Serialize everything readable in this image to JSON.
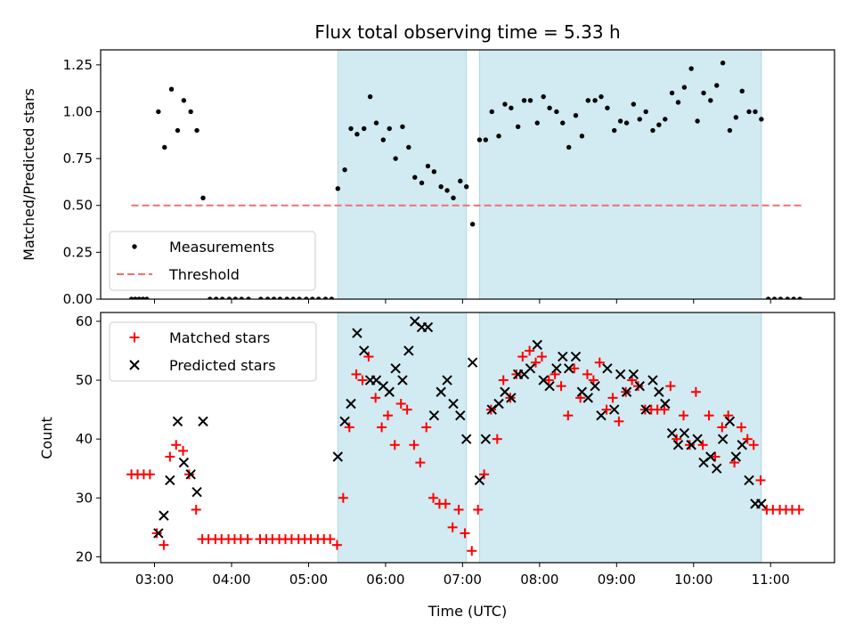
{
  "chart_data": {
    "type": "scatter",
    "title": "Flux total observing time = 5.33 h",
    "xlabel": "Time (UTC)",
    "x_ticks": [
      "03:00",
      "04:00",
      "05:00",
      "06:00",
      "07:00",
      "08:00",
      "09:00",
      "10:00",
      "11:00"
    ],
    "xlim": [
      2.3,
      11.83
    ],
    "colors": {
      "measurements": "#000000",
      "threshold": "#f07070",
      "matched": "#ff0000",
      "predicted": "#000000",
      "shade": "#add8e6"
    },
    "shaded_intervals": [
      [
        5.38,
        7.05
      ],
      [
        7.22,
        10.88
      ]
    ],
    "top": {
      "ylabel": "Matched/Predicted stars",
      "ylim": [
        0,
        1.33
      ],
      "y_ticks": [
        "0.00",
        "0.25",
        "0.50",
        "0.75",
        "1.00",
        "1.25"
      ],
      "legend": {
        "position": "lower-left",
        "entries": [
          "Measurements",
          "Threshold"
        ]
      },
      "threshold": {
        "value": 0.5,
        "x_range": [
          2.7,
          11.4
        ]
      },
      "series": [
        {
          "name": "Measurements",
          "x": [
            2.7,
            2.75,
            2.8,
            2.85,
            2.9,
            3.05,
            3.13,
            3.22,
            3.3,
            3.38,
            3.47,
            3.55,
            3.63,
            3.72,
            3.8,
            3.88,
            3.97,
            4.05,
            4.13,
            4.22,
            4.38,
            4.47,
            4.55,
            4.63,
            4.72,
            4.8,
            4.88,
            4.97,
            5.05,
            5.13,
            5.22,
            5.3,
            5.38,
            5.47,
            5.55,
            5.63,
            5.72,
            5.8,
            5.88,
            5.97,
            6.05,
            6.13,
            6.22,
            6.3,
            6.38,
            6.47,
            6.55,
            6.63,
            6.72,
            6.8,
            6.88,
            6.97,
            7.05,
            7.13,
            7.22,
            7.3,
            7.38,
            7.47,
            7.55,
            7.63,
            7.72,
            7.8,
            7.88,
            7.97,
            8.05,
            8.13,
            8.22,
            8.3,
            8.38,
            8.47,
            8.55,
            8.63,
            8.72,
            8.8,
            8.88,
            8.97,
            9.05,
            9.13,
            9.22,
            9.3,
            9.38,
            9.47,
            9.55,
            9.63,
            9.72,
            9.8,
            9.88,
            9.97,
            10.05,
            10.13,
            10.22,
            10.3,
            10.38,
            10.47,
            10.55,
            10.63,
            10.72,
            10.8,
            10.88,
            10.97,
            11.05,
            11.13,
            11.22,
            11.3,
            11.38
          ],
          "y": [
            0,
            0,
            0,
            0,
            0,
            1.0,
            0.81,
            1.12,
            0.9,
            1.06,
            1.0,
            0.9,
            0.54,
            0,
            0,
            0,
            0,
            0,
            0,
            0,
            0,
            0,
            0,
            0,
            0,
            0,
            0,
            0,
            0,
            0,
            0,
            0,
            0.59,
            0.69,
            0.91,
            0.88,
            0.91,
            1.08,
            0.94,
            0.85,
            0.91,
            0.75,
            0.92,
            0.81,
            0.65,
            0.62,
            0.71,
            0.68,
            0.6,
            0.58,
            0.54,
            0.63,
            0.6,
            0.4,
            0.85,
            0.85,
            1.0,
            0.87,
            1.04,
            1.02,
            0.92,
            1.06,
            1.06,
            0.94,
            1.08,
            1.02,
            1.0,
            0.94,
            0.81,
            0.98,
            0.87,
            1.06,
            1.06,
            1.08,
            1.02,
            0.9,
            0.95,
            0.94,
            1.04,
            0.96,
            1.0,
            0.9,
            0.93,
            0.96,
            1.1,
            1.05,
            1.13,
            1.23,
            0.95,
            1.1,
            1.06,
            1.14,
            1.26,
            0.9,
            0.97,
            1.11,
            1.0,
            1.0,
            0.96,
            0,
            0,
            0,
            0,
            0,
            0
          ]
        }
      ]
    },
    "bottom": {
      "ylabel": "Count",
      "ylim": [
        19,
        61.5
      ],
      "y_ticks": [
        "20",
        "30",
        "40",
        "50",
        "60"
      ],
      "legend": {
        "position": "upper-left",
        "entries": [
          "Matched stars",
          "Predicted stars"
        ]
      },
      "series": [
        {
          "name": "Matched stars",
          "marker": "plus",
          "x": [
            2.7,
            2.78,
            2.86,
            2.94,
            3.03,
            3.12,
            3.2,
            3.28,
            3.37,
            3.45,
            3.54,
            3.62,
            3.7,
            3.79,
            3.87,
            3.96,
            4.04,
            4.12,
            4.21,
            4.37,
            4.45,
            4.53,
            4.62,
            4.7,
            4.78,
            4.87,
            4.95,
            5.03,
            5.12,
            5.2,
            5.28,
            5.37,
            5.45,
            5.53,
            5.62,
            5.7,
            5.78,
            5.87,
            5.95,
            6.03,
            6.12,
            6.2,
            6.28,
            6.37,
            6.45,
            6.53,
            6.62,
            6.7,
            6.78,
            6.87,
            6.95,
            7.03,
            7.12,
            7.2,
            7.28,
            7.37,
            7.45,
            7.53,
            7.62,
            7.7,
            7.78,
            7.87,
            7.95,
            8.03,
            8.12,
            8.2,
            8.28,
            8.37,
            8.45,
            8.53,
            8.62,
            8.7,
            8.78,
            8.87,
            8.95,
            9.03,
            9.12,
            9.2,
            9.28,
            9.37,
            9.45,
            9.53,
            9.62,
            9.7,
            9.78,
            9.87,
            9.95,
            10.03,
            10.12,
            10.2,
            10.28,
            10.37,
            10.45,
            10.53,
            10.62,
            10.7,
            10.78,
            10.87,
            10.95,
            11.03,
            11.12,
            11.2,
            11.28,
            11.37
          ],
          "y": [
            34,
            34,
            34,
            34,
            24,
            22,
            37,
            39,
            38,
            34,
            28,
            23,
            23,
            23,
            23,
            23,
            23,
            23,
            23,
            23,
            23,
            23,
            23,
            23,
            23,
            23,
            23,
            23,
            23,
            23,
            23,
            22,
            30,
            42,
            51,
            50,
            54,
            47,
            42,
            44,
            39,
            46,
            45,
            39,
            36,
            42,
            30,
            29,
            29,
            25,
            28,
            24,
            21,
            28,
            34,
            45,
            40,
            50,
            47,
            51,
            54,
            55,
            53,
            54,
            50,
            51,
            49,
            44,
            52,
            47,
            51,
            50,
            53,
            45,
            47,
            43,
            48,
            50,
            49,
            45,
            45,
            45,
            45,
            49,
            40,
            44,
            39,
            48,
            39,
            44,
            37,
            42,
            44,
            36,
            42,
            40,
            39,
            33,
            28,
            28,
            28,
            28,
            28,
            28
          ]
        },
        {
          "name": "Predicted stars",
          "marker": "x",
          "x": [
            3.05,
            3.12,
            3.2,
            3.3,
            3.38,
            3.47,
            3.55,
            3.63,
            5.38,
            5.47,
            5.55,
            5.63,
            5.72,
            5.8,
            5.88,
            5.97,
            6.05,
            6.13,
            6.22,
            6.3,
            6.38,
            6.47,
            6.55,
            6.63,
            6.72,
            6.8,
            6.88,
            6.97,
            7.05,
            7.13,
            7.22,
            7.3,
            7.38,
            7.47,
            7.55,
            7.63,
            7.72,
            7.8,
            7.88,
            7.97,
            8.05,
            8.13,
            8.22,
            8.3,
            8.38,
            8.47,
            8.55,
            8.63,
            8.72,
            8.8,
            8.88,
            8.97,
            9.05,
            9.13,
            9.22,
            9.3,
            9.38,
            9.47,
            9.55,
            9.63,
            9.72,
            9.8,
            9.88,
            9.97,
            10.05,
            10.13,
            10.22,
            10.3,
            10.38,
            10.47,
            10.55,
            10.63,
            10.72,
            10.8,
            10.88
          ],
          "y": [
            24,
            27,
            33,
            43,
            36,
            34,
            31,
            43,
            37,
            43,
            46,
            58,
            55,
            50,
            50,
            49,
            48,
            52,
            50,
            55,
            60,
            59,
            59,
            44,
            48,
            50,
            46,
            44,
            40,
            53,
            33,
            40,
            45,
            46,
            48,
            47,
            51,
            51,
            52,
            56,
            50,
            49,
            52,
            54,
            52,
            54,
            48,
            47,
            49,
            44,
            52,
            45,
            51,
            48,
            51,
            49,
            45,
            50,
            48,
            46,
            41,
            39,
            41,
            39,
            40,
            36,
            37,
            35,
            40,
            43,
            37,
            39,
            33,
            29,
            29
          ]
        }
      ]
    }
  }
}
